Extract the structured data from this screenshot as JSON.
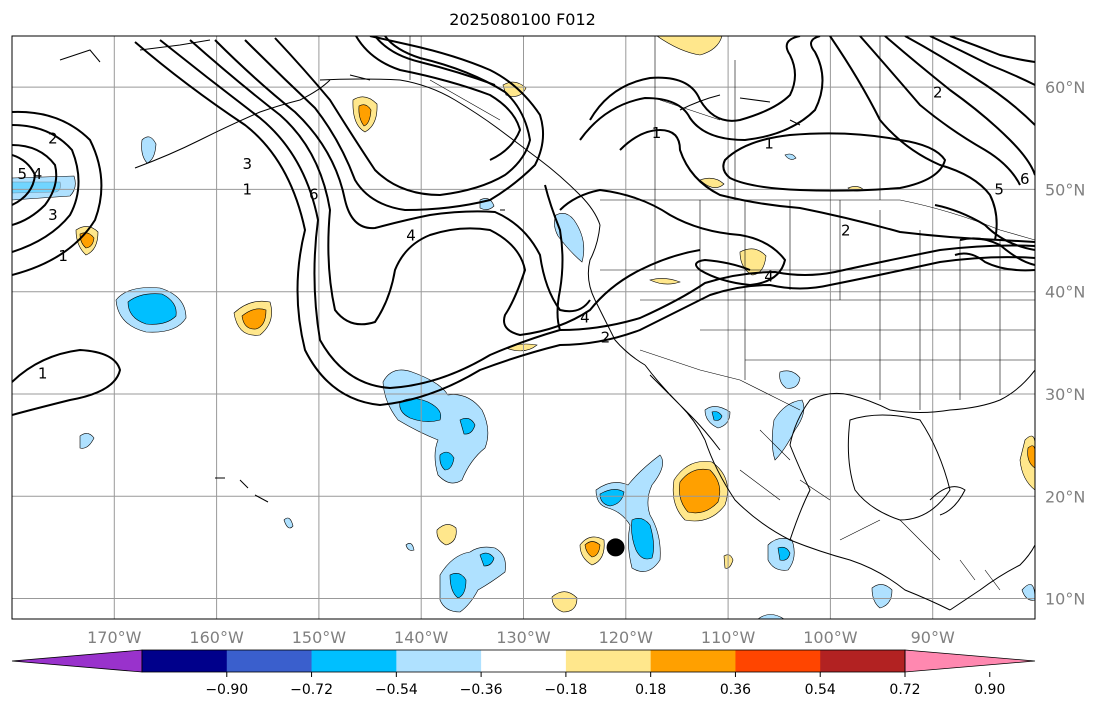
{
  "title": "2025080100 F012",
  "map": {
    "projection": "cylindrical",
    "lon_range": [
      180,
      280
    ],
    "lat_range": [
      8,
      65
    ],
    "lat_ticks": [
      {
        "value": 10,
        "label": "10°N"
      },
      {
        "value": 20,
        "label": "20°N"
      },
      {
        "value": 30,
        "label": "30°N"
      },
      {
        "value": 40,
        "label": "40°N"
      },
      {
        "value": 50,
        "label": "50°N"
      },
      {
        "value": 60,
        "label": "60°N"
      }
    ],
    "lon_ticks": [
      {
        "value": 190,
        "label": "170°W"
      },
      {
        "value": 200,
        "label": "160°W"
      },
      {
        "value": 210,
        "label": "150°W"
      },
      {
        "value": 220,
        "label": "140°W"
      },
      {
        "value": 230,
        "label": "130°W"
      },
      {
        "value": 240,
        "label": "120°W"
      },
      {
        "value": 250,
        "label": "110°W"
      },
      {
        "value": 260,
        "label": "100°W"
      },
      {
        "value": 270,
        "label": "90°W"
      }
    ],
    "grid": true,
    "storm_marker": {
      "lon": 239,
      "lat": 15
    },
    "contour_labels": [
      {
        "text": "2",
        "lon": 184,
        "lat": 55
      },
      {
        "text": "5",
        "lon": 181,
        "lat": 51.5
      },
      {
        "text": "4",
        "lon": 182.5,
        "lat": 51.5
      },
      {
        "text": "3",
        "lon": 184,
        "lat": 47.5
      },
      {
        "text": "1",
        "lon": 185,
        "lat": 43.5
      },
      {
        "text": "1",
        "lon": 183,
        "lat": 32
      },
      {
        "text": "3",
        "lon": 203,
        "lat": 52.5
      },
      {
        "text": "1",
        "lon": 203,
        "lat": 50
      },
      {
        "text": "6",
        "lon": 209.5,
        "lat": 49.5
      },
      {
        "text": "4",
        "lon": 219,
        "lat": 45.5
      },
      {
        "text": "1",
        "lon": 243,
        "lat": 55.5
      },
      {
        "text": "1",
        "lon": 254,
        "lat": 54.5
      },
      {
        "text": "2",
        "lon": 261.5,
        "lat": 46
      },
      {
        "text": "4",
        "lon": 254,
        "lat": 41.5
      },
      {
        "text": "4",
        "lon": 236,
        "lat": 37.5
      },
      {
        "text": "2",
        "lon": 238,
        "lat": 35.5
      },
      {
        "text": "2",
        "lon": 270.5,
        "lat": 59.5
      },
      {
        "text": "5",
        "lon": 276.5,
        "lat": 50
      },
      {
        "text": "6",
        "lon": 279,
        "lat": 51
      }
    ]
  },
  "colorbar": {
    "ticks": [
      "−0.90",
      "−0.72",
      "−0.54",
      "−0.36",
      "−0.18",
      "0.18",
      "0.36",
      "0.54",
      "0.72",
      "0.90"
    ],
    "colors": [
      "#9932cc",
      "#00008b",
      "#3a5fcd",
      "#00bfff",
      "#afe1ff",
      "#ffffff",
      "#ffe78c",
      "#ffa000",
      "#ff4500",
      "#b22222",
      "#ff88b0"
    ],
    "extend": "both"
  }
}
